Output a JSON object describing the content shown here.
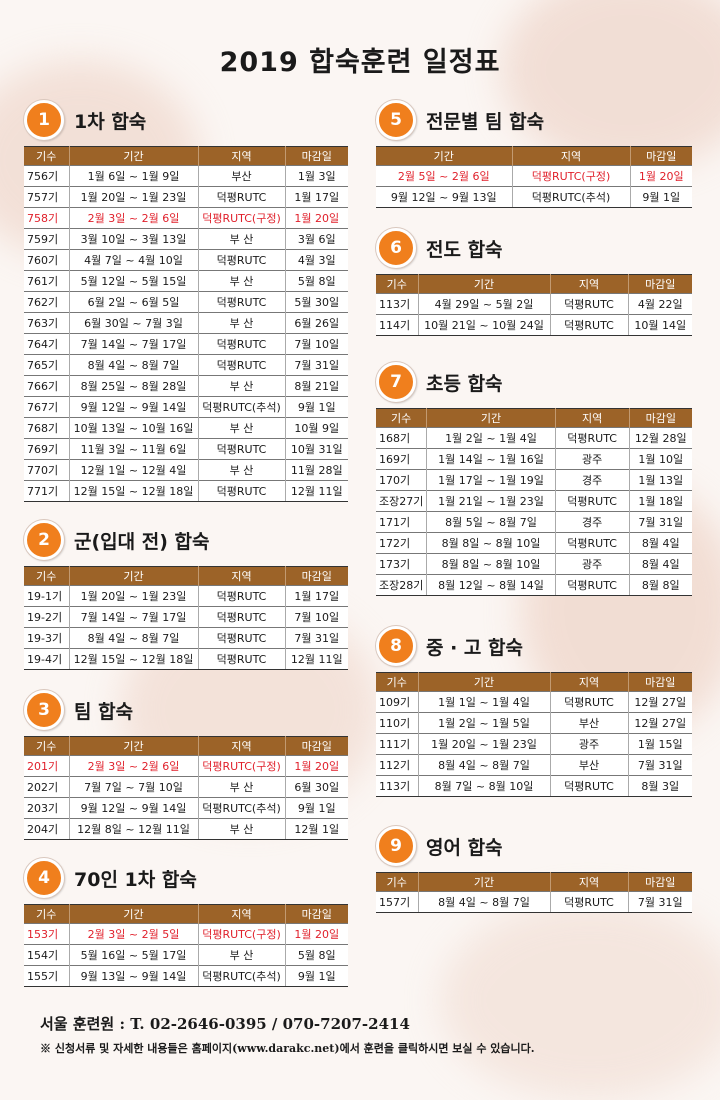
{
  "title": "2019 합숙훈련 일정표",
  "headers4": [
    "기수",
    "기간",
    "지역",
    "마감일"
  ],
  "headers3": [
    "기간",
    "지역",
    "마감일"
  ],
  "s1": {
    "num": "1",
    "title": "1차 합숙",
    "rows": [
      {
        "red": false,
        "c": [
          "756기",
          "1월 6일 ~ 1월 9일",
          "부산",
          "1월 3일"
        ]
      },
      {
        "red": false,
        "c": [
          "757기",
          "1월 20일 ~ 1월 23일",
          "덕평RUTC",
          "1월 17일"
        ]
      },
      {
        "red": true,
        "c": [
          "758기",
          "2월 3일 ~ 2월 6일",
          "덕평RUTC(구정)",
          "1월 20일"
        ]
      },
      {
        "red": false,
        "c": [
          "759기",
          "3월 10일 ~ 3월 13일",
          "부 산",
          "3월 6일"
        ]
      },
      {
        "red": false,
        "c": [
          "760기",
          "4월 7일 ~ 4월 10일",
          "덕평RUTC",
          "4월 3일"
        ]
      },
      {
        "red": false,
        "c": [
          "761기",
          "5월 12일 ~ 5월 15일",
          "부 산",
          "5월 8일"
        ]
      },
      {
        "red": false,
        "c": [
          "762기",
          "6월 2일 ~ 6월 5일",
          "덕평RUTC",
          "5월 30일"
        ]
      },
      {
        "red": false,
        "c": [
          "763기",
          "6월 30일 ~ 7월 3일",
          "부 산",
          "6월 26일"
        ]
      },
      {
        "red": false,
        "c": [
          "764기",
          "7월 14일 ~ 7월 17일",
          "덕평RUTC",
          "7월 10일"
        ]
      },
      {
        "red": false,
        "c": [
          "765기",
          "8월 4일 ~ 8월 7일",
          "덕평RUTC",
          "7월 31일"
        ]
      },
      {
        "red": false,
        "c": [
          "766기",
          "8월 25일 ~ 8월 28일",
          "부 산",
          "8월 21일"
        ]
      },
      {
        "red": false,
        "c": [
          "767기",
          "9월 12일 ~ 9월 14일",
          "덕평RUTC(추석)",
          "9월 1일"
        ]
      },
      {
        "red": false,
        "c": [
          "768기",
          "10월 13일 ~ 10월 16일",
          "부 산",
          "10월 9일"
        ]
      },
      {
        "red": false,
        "c": [
          "769기",
          "11월 3일 ~ 11월 6일",
          "덕평RUTC",
          "10월 31일"
        ]
      },
      {
        "red": false,
        "c": [
          "770기",
          "12월 1일 ~ 12월 4일",
          "부 산",
          "11월 28일"
        ]
      },
      {
        "red": false,
        "c": [
          "771기",
          "12월 15일 ~ 12월 18일",
          "덕평RUTC",
          "12월 11일"
        ]
      }
    ]
  },
  "s2": {
    "num": "2",
    "title": "군(입대 전) 합숙",
    "rows": [
      {
        "red": false,
        "c": [
          "19-1기",
          "1월 20일 ~ 1월 23일",
          "덕평RUTC",
          "1월 17일"
        ]
      },
      {
        "red": false,
        "c": [
          "19-2기",
          "7월 14일 ~ 7월 17일",
          "덕평RUTC",
          "7월 10일"
        ]
      },
      {
        "red": false,
        "c": [
          "19-3기",
          "8월 4일 ~ 8월 7일",
          "덕평RUTC",
          "7월 31일"
        ]
      },
      {
        "red": false,
        "c": [
          "19-4기",
          "12월 15일 ~ 12월 18일",
          "덕평RUTC",
          "12월 11일"
        ]
      }
    ]
  },
  "s3": {
    "num": "3",
    "title": "팀 합숙",
    "rows": [
      {
        "red": true,
        "c": [
          "201기",
          "2월 3일 ~ 2월 6일",
          "덕평RUTC(구정)",
          "1월 20일"
        ]
      },
      {
        "red": false,
        "c": [
          "202기",
          "7월 7일 ~ 7월 10일",
          "부 산",
          "6월 30일"
        ]
      },
      {
        "red": false,
        "c": [
          "203기",
          "9월 12일 ~ 9월 14일",
          "덕평RUTC(추석)",
          "9월 1일"
        ]
      },
      {
        "red": false,
        "c": [
          "204기",
          "12월 8일 ~ 12월 11일",
          "부 산",
          "12월 1일"
        ]
      }
    ]
  },
  "s4": {
    "num": "4",
    "title": "70인 1차 합숙",
    "rows": [
      {
        "red": true,
        "c": [
          "153기",
          "2월 3일 ~ 2월 5일",
          "덕평RUTC(구정)",
          "1월 20일"
        ]
      },
      {
        "red": false,
        "c": [
          "154기",
          "5월 16일 ~ 5월 17일",
          "부 산",
          "5월 8일"
        ]
      },
      {
        "red": false,
        "c": [
          "155기",
          "9월 13일 ~ 9월 14일",
          "덕평RUTC(추석)",
          "9월 1일"
        ]
      }
    ]
  },
  "s5": {
    "num": "5",
    "title": "전문별 팀 합숙",
    "rows": [
      {
        "red": true,
        "c": [
          "2월 5일 ~ 2월 6일",
          "덕평RUTC(구정)",
          "1월 20일"
        ]
      },
      {
        "red": false,
        "c": [
          "9월 12일 ~ 9월 13일",
          "덕평RUTC(추석)",
          "9월 1일"
        ]
      }
    ]
  },
  "s6": {
    "num": "6",
    "title": "전도 합숙",
    "rows": [
      {
        "red": false,
        "c": [
          "113기",
          "4월 29일 ~ 5월 2일",
          "덕평RUTC",
          "4월 22일"
        ]
      },
      {
        "red": false,
        "c": [
          "114기",
          "10월 21일 ~ 10월 24일",
          "덕평RUTC",
          "10월 14일"
        ]
      }
    ]
  },
  "s7": {
    "num": "7",
    "title": "초등 합숙",
    "rows": [
      {
        "red": false,
        "c": [
          "168기",
          "1월 2일 ~ 1월 4일",
          "덕평RUTC",
          "12월 28일"
        ]
      },
      {
        "red": false,
        "c": [
          "169기",
          "1월 14일 ~ 1월 16일",
          "광주",
          "1월 10일"
        ]
      },
      {
        "red": false,
        "c": [
          "170기",
          "1월 17일 ~ 1월 19일",
          "경주",
          "1월 13일"
        ]
      },
      {
        "red": false,
        "c": [
          "조장27기",
          "1월 21일 ~ 1월 23일",
          "덕평RUTC",
          "1월 18일"
        ]
      },
      {
        "red": false,
        "c": [
          "171기",
          "8월 5일 ~ 8월 7일",
          "경주",
          "7월 31일"
        ]
      },
      {
        "red": false,
        "c": [
          "172기",
          "8월 8일 ~ 8월 10일",
          "덕평RUTC",
          "8월 4일"
        ]
      },
      {
        "red": false,
        "c": [
          "173기",
          "8월 8일 ~ 8월 10일",
          "광주",
          "8월 4일"
        ]
      },
      {
        "red": false,
        "c": [
          "조장28기",
          "8월 12일 ~ 8월 14일",
          "덕평RUTC",
          "8월 8일"
        ]
      }
    ]
  },
  "s8": {
    "num": "8",
    "title": "중 · 고 합숙",
    "rows": [
      {
        "red": false,
        "c": [
          "109기",
          "1월 1일 ~ 1월 4일",
          "덕평RUTC",
          "12월 27일"
        ]
      },
      {
        "red": false,
        "c": [
          "110기",
          "1월 2일 ~ 1월 5일",
          "부산",
          "12월 27일"
        ]
      },
      {
        "red": false,
        "c": [
          "111기",
          "1월 20일 ~ 1월 23일",
          "광주",
          "1월 15일"
        ]
      },
      {
        "red": false,
        "c": [
          "112기",
          "8월 4일 ~ 8월 7일",
          "부산",
          "7월 31일"
        ]
      },
      {
        "red": false,
        "c": [
          "113기",
          "8월 7일 ~ 8월 10일",
          "덕평RUTC",
          "8월 3일"
        ]
      }
    ]
  },
  "s9": {
    "num": "9",
    "title": "영어 합숙",
    "rows": [
      {
        "red": false,
        "c": [
          "157기",
          "8월 4일 ~ 8월 7일",
          "덕평RUTC",
          "7월 31일"
        ]
      }
    ]
  },
  "footer": {
    "phone": "서울 훈련원 : T. 02-2646-0395 / 070-7207-2414",
    "note": "※ 신청서류 및 자세한 내용들은 홈페이지(www.darakc.net)에서 훈련을 클릭하시면 보실 수 있습니다."
  },
  "colors": {
    "badge": "#f07f1d",
    "header": "#9c6328",
    "highlight": "#e01f2a"
  }
}
